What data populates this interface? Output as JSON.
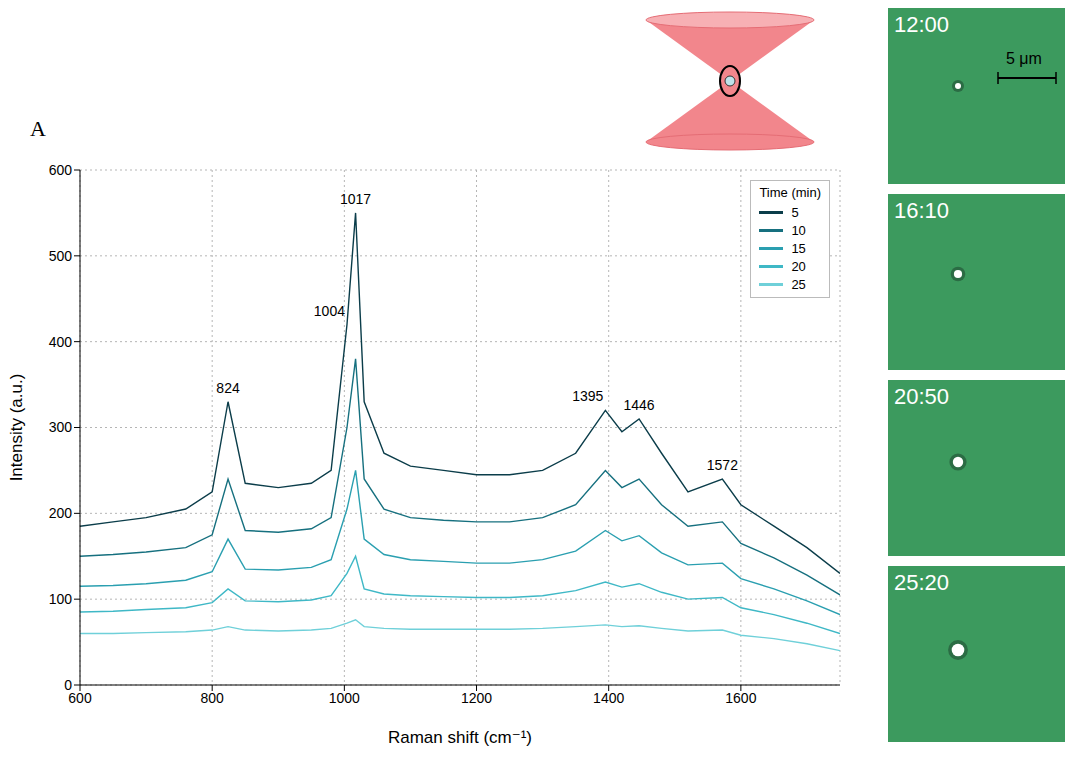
{
  "chart_data": {
    "type": "line",
    "panel_label": "A",
    "x_label": "Raman shift (cm⁻¹)",
    "y_label": "Intensity (a.u.)",
    "time_label": "Time (min)",
    "legend": "upper right",
    "grid": true,
    "xlim": [
      600,
      1750
    ],
    "xticks": [
      600,
      800,
      1000,
      1200,
      1400,
      1600
    ],
    "ylim": [
      0,
      600
    ],
    "yticks": [
      0,
      100,
      200,
      300,
      400,
      500,
      600
    ],
    "peak_labels": [
      824,
      1004,
      1017,
      1395,
      1446,
      1572
    ],
    "x": [
      600,
      650,
      700,
      760,
      800,
      824,
      850,
      900,
      950,
      980,
      1004,
      1017,
      1030,
      1060,
      1100,
      1150,
      1200,
      1250,
      1300,
      1350,
      1395,
      1420,
      1446,
      1480,
      1520,
      1572,
      1600,
      1650,
      1700,
      1750
    ],
    "series": [
      {
        "time": 5,
        "color": "#0b3d4a",
        "values": [
          185,
          190,
          195,
          205,
          225,
          330,
          235,
          230,
          235,
          250,
          420,
          550,
          330,
          270,
          255,
          250,
          245,
          245,
          250,
          270,
          320,
          295,
          310,
          270,
          225,
          240,
          210,
          185,
          160,
          130
        ]
      },
      {
        "time": 10,
        "color": "#16707f",
        "values": [
          150,
          152,
          155,
          160,
          175,
          240,
          180,
          178,
          182,
          195,
          300,
          380,
          240,
          205,
          195,
          192,
          190,
          190,
          195,
          210,
          250,
          230,
          240,
          210,
          185,
          190,
          165,
          148,
          128,
          105
        ]
      },
      {
        "time": 15,
        "color": "#2a9fb0",
        "values": [
          115,
          116,
          118,
          122,
          132,
          170,
          135,
          134,
          137,
          146,
          205,
          250,
          170,
          152,
          146,
          144,
          142,
          142,
          146,
          156,
          180,
          168,
          174,
          154,
          140,
          142,
          124,
          112,
          98,
          82
        ]
      },
      {
        "time": 20,
        "color": "#3fb8c6",
        "values": [
          85,
          86,
          88,
          90,
          96,
          112,
          98,
          97,
          99,
          104,
          130,
          150,
          112,
          106,
          104,
          103,
          102,
          102,
          104,
          110,
          120,
          114,
          118,
          108,
          100,
          102,
          90,
          82,
          72,
          60
        ]
      },
      {
        "time": 25,
        "color": "#6fd0d9",
        "values": [
          60,
          60,
          61,
          62,
          64,
          68,
          64,
          63,
          64,
          66,
          72,
          76,
          68,
          66,
          65,
          65,
          65,
          65,
          66,
          68,
          70,
          68,
          69,
          66,
          63,
          64,
          58,
          54,
          48,
          40
        ]
      }
    ]
  },
  "micrographs": {
    "times": [
      "12:00",
      "16:10",
      "20:50",
      "25:20"
    ],
    "scale_bar": "5 μm"
  }
}
